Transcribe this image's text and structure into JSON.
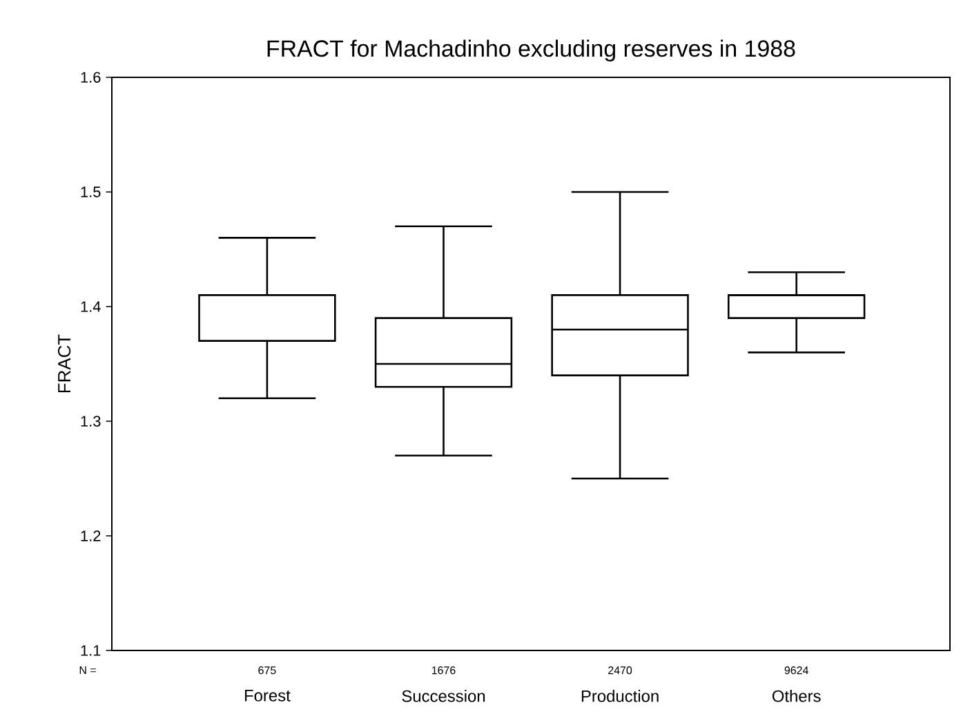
{
  "chart_data": {
    "type": "box",
    "title": "FRACT for Machadinho excluding reserves in 1988",
    "ylabel": "FRACT",
    "categories": [
      "Forest",
      "Succession",
      "Production",
      "Others"
    ],
    "boxes": [
      {
        "low": 1.32,
        "q1": 1.37,
        "median": 1.37,
        "q3": 1.41,
        "high": 1.46
      },
      {
        "low": 1.27,
        "q1": 1.33,
        "median": 1.35,
        "q3": 1.39,
        "high": 1.47
      },
      {
        "low": 1.25,
        "q1": 1.34,
        "median": 1.38,
        "q3": 1.41,
        "high": 1.5
      },
      {
        "low": 1.36,
        "q1": 1.39,
        "median": 1.41,
        "q3": 1.41,
        "high": 1.43
      }
    ],
    "ylim": [
      1.1,
      1.6
    ],
    "yticks": [
      1.1,
      1.2,
      1.3,
      1.4,
      1.5,
      1.6
    ],
    "grid": false,
    "annotations": [
      "N =",
      "675",
      "1676",
      "2470",
      "9624"
    ]
  }
}
